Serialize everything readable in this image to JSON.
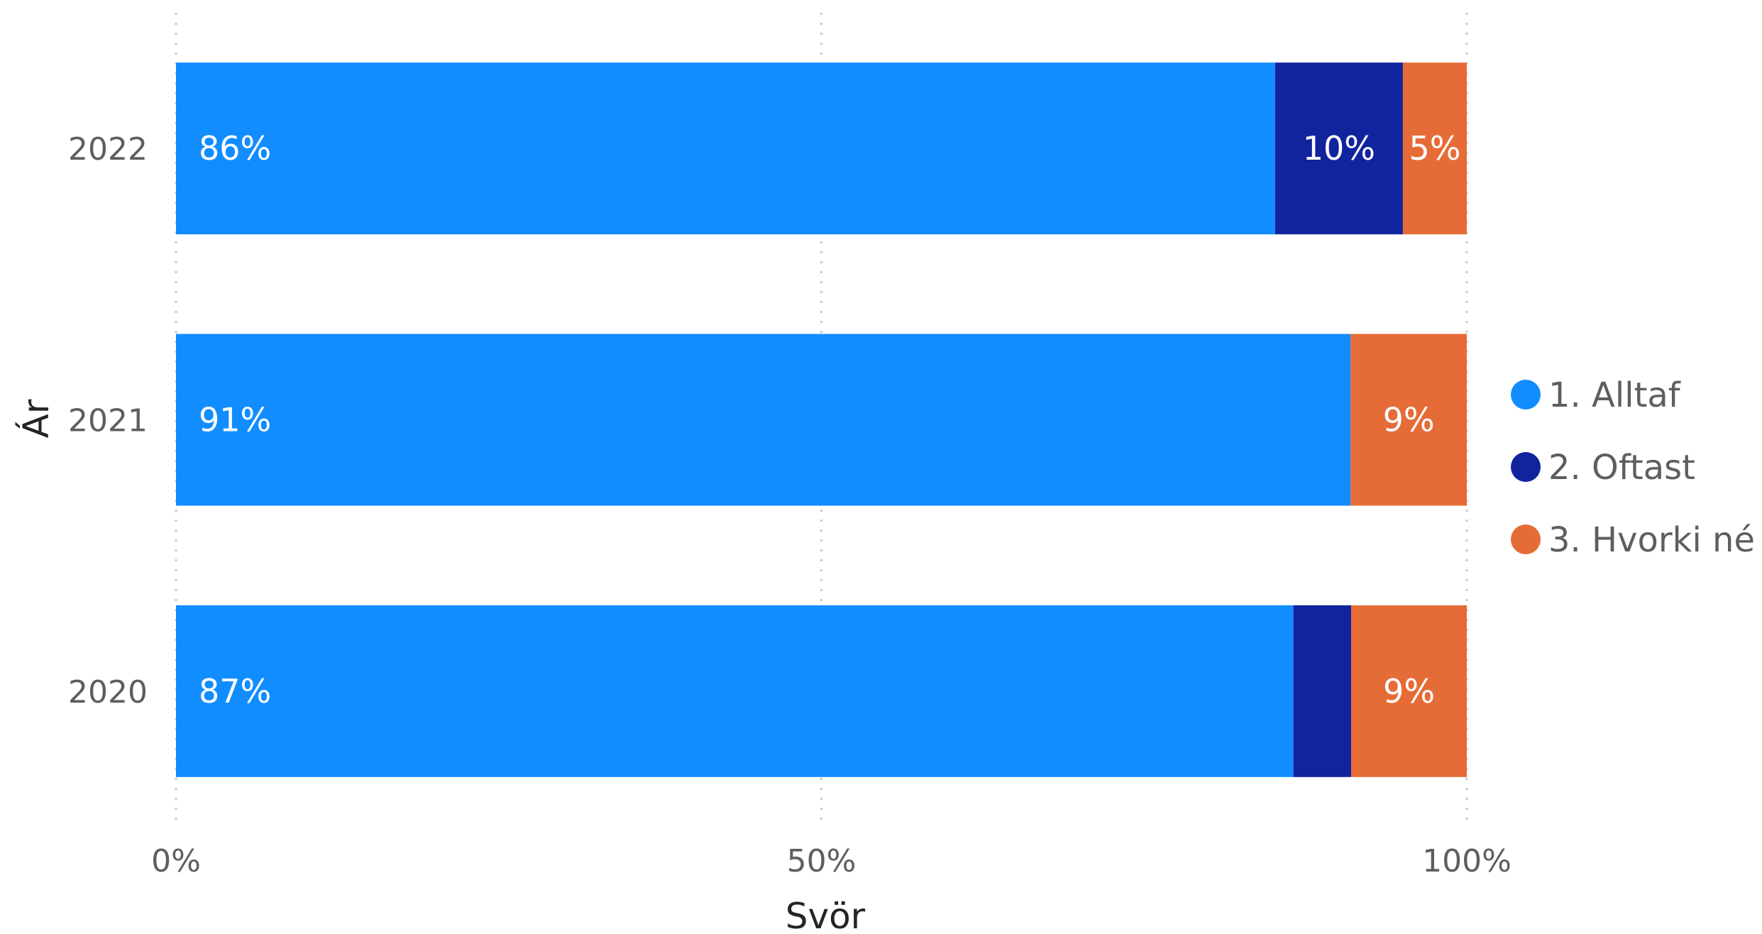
{
  "chart_data": {
    "type": "bar",
    "orientation": "horizontal",
    "stacked": "100%",
    "categories": [
      "2022",
      "2021",
      "2020"
    ],
    "series": [
      {
        "name": "1. Alltaf",
        "color": "#118dff",
        "values": [
          86,
          91,
          87
        ],
        "labels": [
          "86%",
          "91%",
          "87%"
        ]
      },
      {
        "name": "2. Oftast",
        "color": "#12239e",
        "values": [
          10,
          0,
          4.5
        ],
        "labels": [
          "10%",
          "",
          ""
        ]
      },
      {
        "name": "3. Hvorki né",
        "color": "#e66c37",
        "values": [
          5,
          9,
          9
        ],
        "labels": [
          "5%",
          "9%",
          "9%"
        ]
      }
    ],
    "xlabel": "Svör",
    "ylabel": "Ár",
    "xlim": [
      0,
      100
    ],
    "xticks": [
      {
        "value": 0,
        "label": "0%"
      },
      {
        "value": 50,
        "label": "50%"
      },
      {
        "value": 100,
        "label": "100%"
      }
    ],
    "grid": true,
    "legend_position": "right"
  }
}
